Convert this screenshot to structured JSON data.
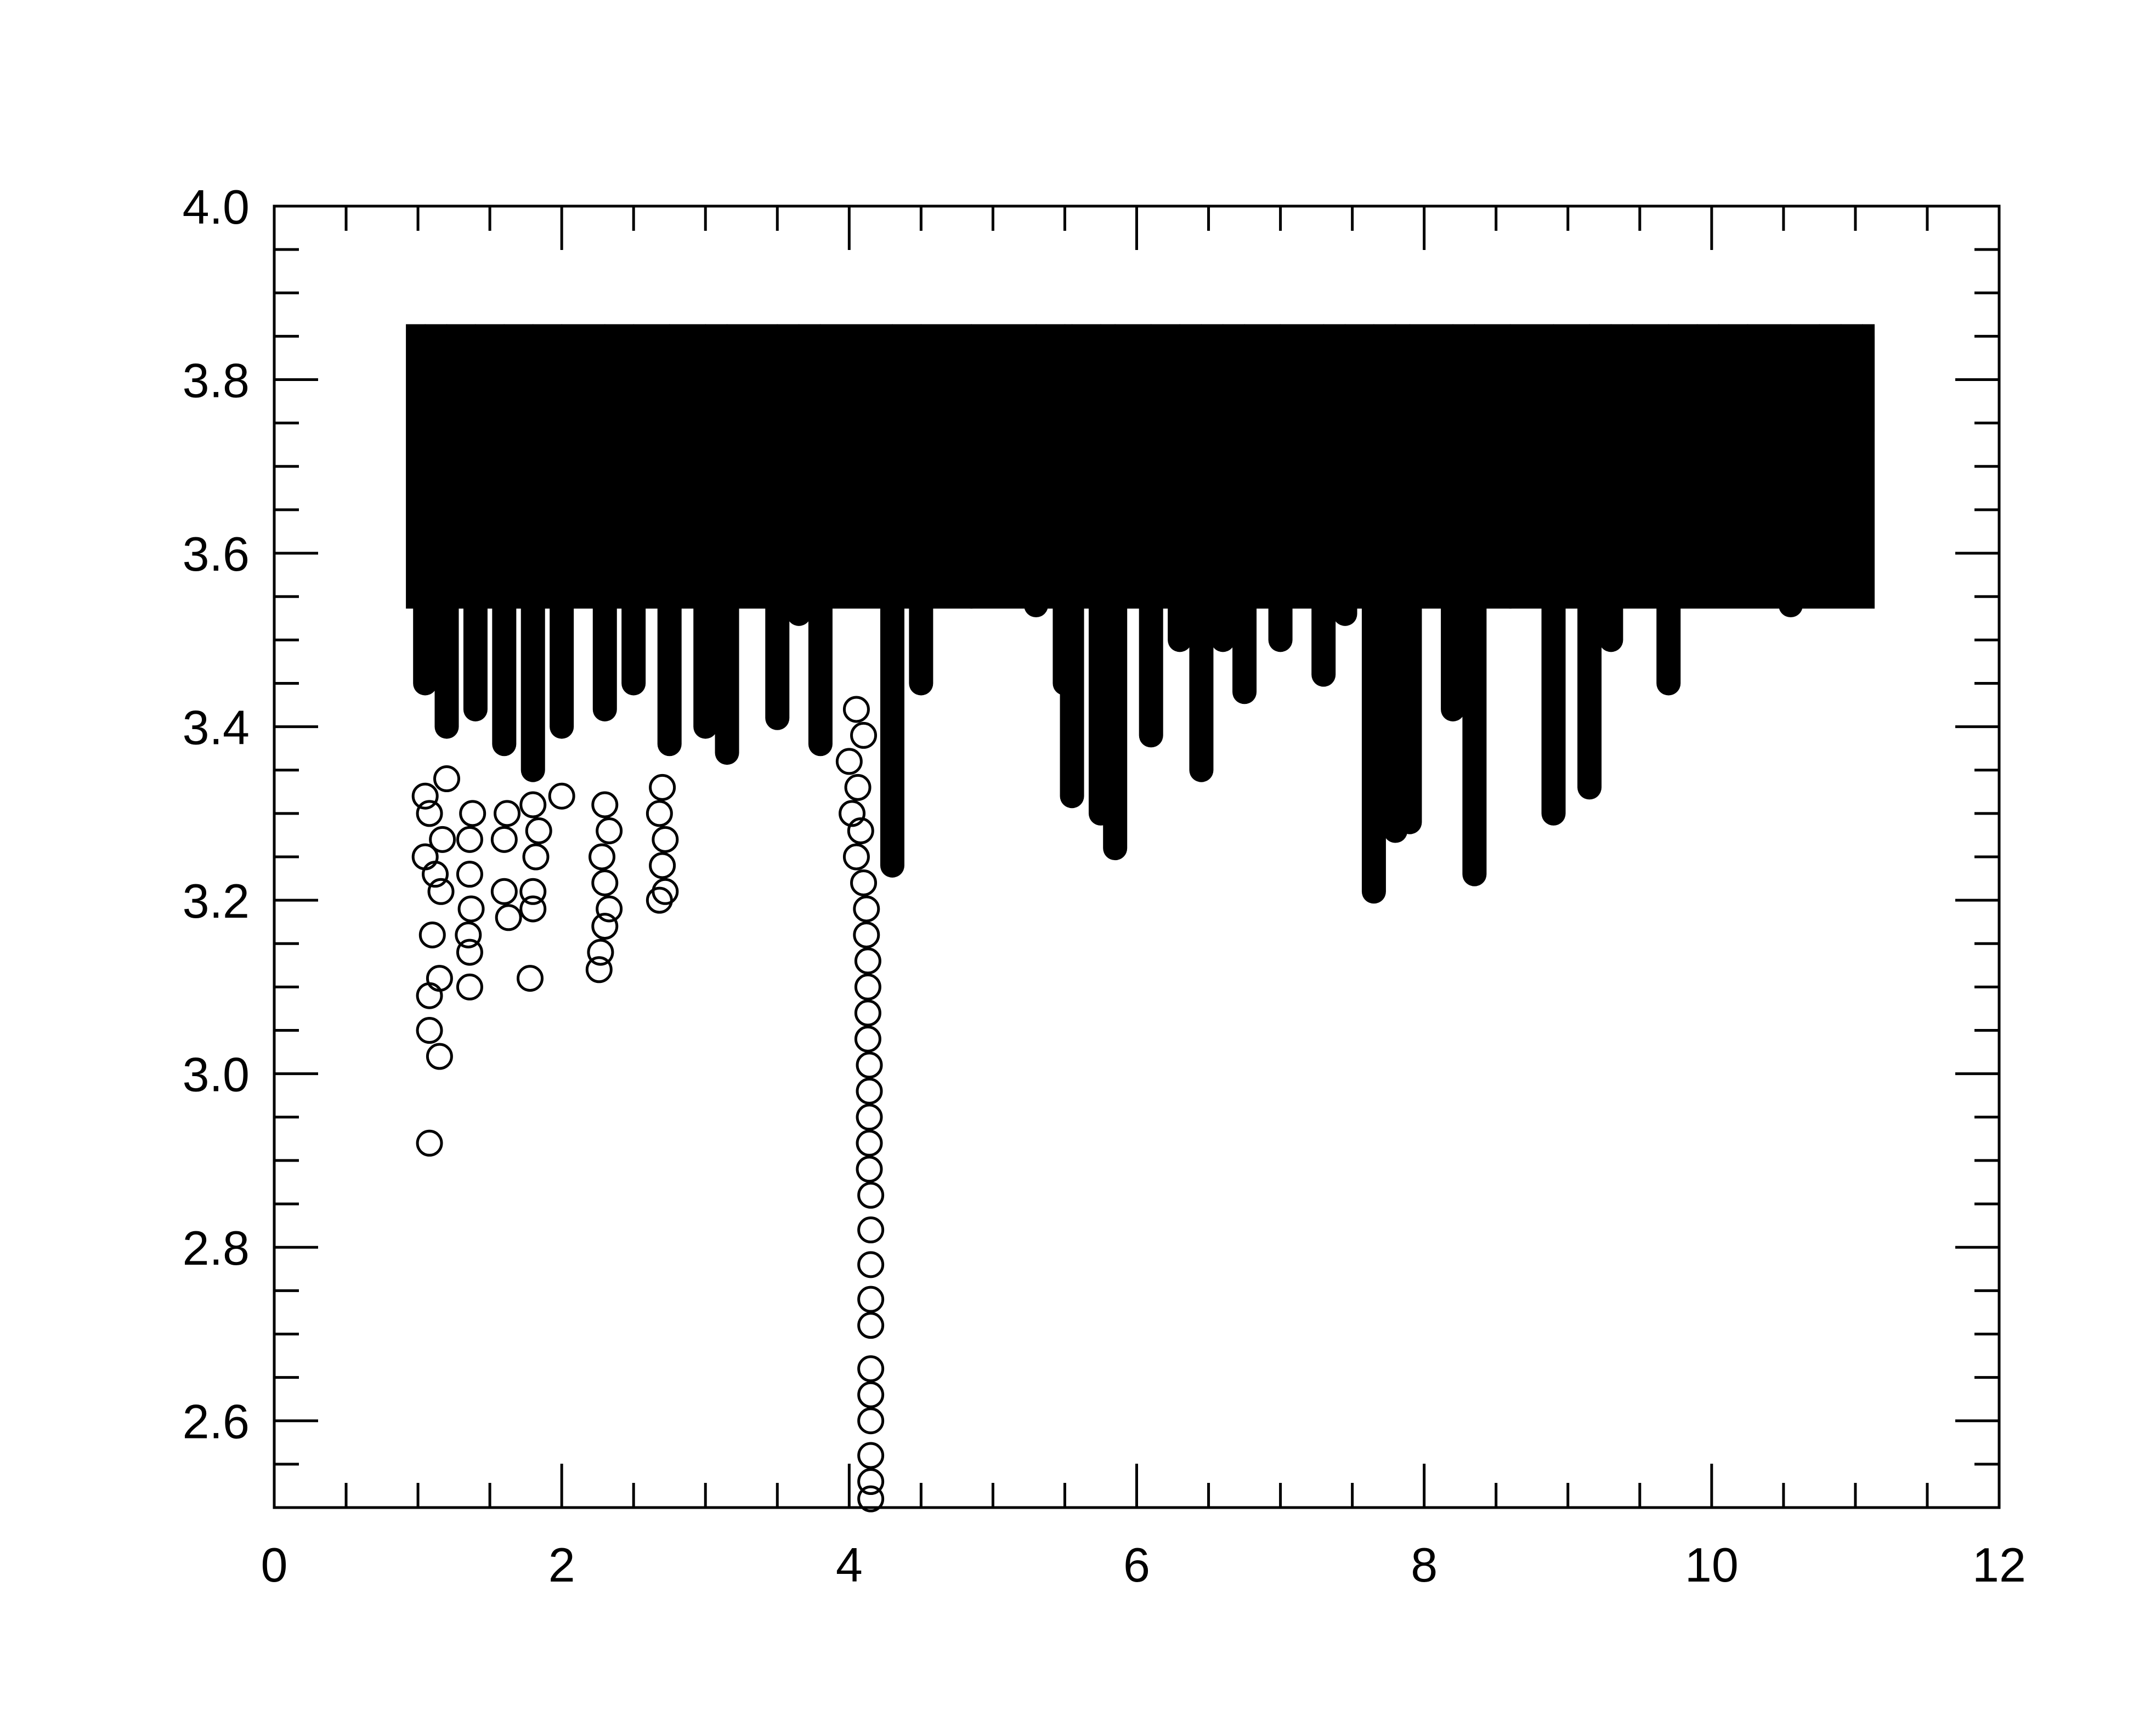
{
  "chart_data": {
    "type": "scatter",
    "title": "",
    "xlabel": "",
    "ylabel": "",
    "xlim": [
      0,
      12
    ],
    "ylim": [
      2.5,
      4.0
    ],
    "x_ticks": [
      0,
      2,
      4,
      6,
      8,
      10,
      12
    ],
    "x_tick_labels": [
      "0",
      "2",
      "4",
      "6",
      "8",
      "10",
      "12"
    ],
    "y_ticks": [
      2.6,
      2.8,
      3.0,
      3.2,
      3.4,
      3.6,
      3.8,
      4.0
    ],
    "y_tick_labels": [
      "2.6",
      "2.8",
      "3.0",
      "3.2",
      "3.4",
      "3.6",
      "3.8",
      "4.0"
    ],
    "x_minor_step": 0.5,
    "y_minor_step": 0.05,
    "grid": false,
    "legend": "none",
    "marker": "open-circle",
    "marker_color": "#000000",
    "series": [
      {
        "description_values_only": true,
        "envelope_top": 3.85,
        "dense_band": {
          "x_start": 1.0,
          "x_end": 11.05,
          "y_floor": 3.55,
          "y_top": 3.85
        },
        "columns": [
          {
            "x": 1.05,
            "y_min": 3.45
          },
          {
            "x": 1.2,
            "y_min": 3.4
          },
          {
            "x": 1.4,
            "y_min": 3.42
          },
          {
            "x": 1.6,
            "y_min": 3.38
          },
          {
            "x": 1.8,
            "y_min": 3.35
          },
          {
            "x": 2.0,
            "y_min": 3.4
          },
          {
            "x": 2.3,
            "y_min": 3.42
          },
          {
            "x": 2.5,
            "y_min": 3.45
          },
          {
            "x": 2.75,
            "y_min": 3.38
          },
          {
            "x": 3.0,
            "y_min": 3.4
          },
          {
            "x": 3.15,
            "y_min": 3.37
          },
          {
            "x": 3.5,
            "y_min": 3.41
          },
          {
            "x": 3.65,
            "y_min": 3.53
          },
          {
            "x": 3.8,
            "y_min": 3.38
          },
          {
            "x": 4.3,
            "y_min": 3.24
          },
          {
            "x": 4.5,
            "y_min": 3.45
          },
          {
            "x": 4.85,
            "y_min": 3.55
          },
          {
            "x": 5.3,
            "y_min": 3.54
          },
          {
            "x": 5.5,
            "y_min": 3.45
          },
          {
            "x": 5.55,
            "y_min": 3.32
          },
          {
            "x": 5.75,
            "y_min": 3.3
          },
          {
            "x": 5.85,
            "y_min": 3.26
          },
          {
            "x": 6.1,
            "y_min": 3.39
          },
          {
            "x": 6.3,
            "y_min": 3.5
          },
          {
            "x": 6.45,
            "y_min": 3.35
          },
          {
            "x": 6.6,
            "y_min": 3.5
          },
          {
            "x": 6.75,
            "y_min": 3.44
          },
          {
            "x": 7.0,
            "y_min": 3.5
          },
          {
            "x": 7.3,
            "y_min": 3.46
          },
          {
            "x": 7.45,
            "y_min": 3.53
          },
          {
            "x": 7.65,
            "y_min": 3.21
          },
          {
            "x": 7.8,
            "y_min": 3.28
          },
          {
            "x": 7.9,
            "y_min": 3.29
          },
          {
            "x": 8.2,
            "y_min": 3.42
          },
          {
            "x": 8.35,
            "y_min": 3.23
          },
          {
            "x": 8.6,
            "y_min": 3.55
          },
          {
            "x": 8.9,
            "y_min": 3.3
          },
          {
            "x": 9.15,
            "y_min": 3.33
          },
          {
            "x": 9.3,
            "y_min": 3.5
          },
          {
            "x": 9.45,
            "y_min": 3.63
          },
          {
            "x": 9.7,
            "y_min": 3.45
          },
          {
            "x": 9.9,
            "y_min": 3.6
          },
          {
            "x": 10.05,
            "y_min": 3.62
          },
          {
            "x": 10.25,
            "y_min": 3.58
          },
          {
            "x": 10.55,
            "y_min": 3.54
          },
          {
            "x": 10.75,
            "y_min": 3.66
          },
          {
            "x": 10.9,
            "y_min": 3.57
          },
          {
            "x": 11.05,
            "y_min": 3.74
          }
        ],
        "outliers": [
          {
            "x": 1.08,
            "y": 2.92
          },
          {
            "x": 1.15,
            "y": 3.02
          },
          {
            "x": 1.08,
            "y": 3.05
          },
          {
            "x": 1.08,
            "y": 3.09
          },
          {
            "x": 1.15,
            "y": 3.11
          },
          {
            "x": 1.1,
            "y": 3.16
          },
          {
            "x": 1.16,
            "y": 3.21
          },
          {
            "x": 1.12,
            "y": 3.23
          },
          {
            "x": 1.05,
            "y": 3.25
          },
          {
            "x": 1.17,
            "y": 3.27
          },
          {
            "x": 1.08,
            "y": 3.3
          },
          {
            "x": 1.05,
            "y": 3.32
          },
          {
            "x": 1.2,
            "y": 3.34
          },
          {
            "x": 1.36,
            "y": 3.1
          },
          {
            "x": 1.36,
            "y": 3.14
          },
          {
            "x": 1.35,
            "y": 3.16
          },
          {
            "x": 1.37,
            "y": 3.19
          },
          {
            "x": 1.36,
            "y": 3.23
          },
          {
            "x": 1.36,
            "y": 3.27
          },
          {
            "x": 1.38,
            "y": 3.3
          },
          {
            "x": 1.63,
            "y": 3.18
          },
          {
            "x": 1.6,
            "y": 3.21
          },
          {
            "x": 1.6,
            "y": 3.27
          },
          {
            "x": 1.62,
            "y": 3.3
          },
          {
            "x": 1.78,
            "y": 3.11
          },
          {
            "x": 1.8,
            "y": 3.19
          },
          {
            "x": 1.8,
            "y": 3.21
          },
          {
            "x": 1.82,
            "y": 3.25
          },
          {
            "x": 1.84,
            "y": 3.28
          },
          {
            "x": 1.8,
            "y": 3.31
          },
          {
            "x": 2.0,
            "y": 3.32
          },
          {
            "x": 2.26,
            "y": 3.12
          },
          {
            "x": 2.27,
            "y": 3.14
          },
          {
            "x": 2.3,
            "y": 3.17
          },
          {
            "x": 2.33,
            "y": 3.19
          },
          {
            "x": 2.3,
            "y": 3.22
          },
          {
            "x": 2.28,
            "y": 3.25
          },
          {
            "x": 2.33,
            "y": 3.28
          },
          {
            "x": 2.3,
            "y": 3.31
          },
          {
            "x": 2.68,
            "y": 3.2
          },
          {
            "x": 2.72,
            "y": 3.21
          },
          {
            "x": 2.7,
            "y": 3.24
          },
          {
            "x": 2.72,
            "y": 3.27
          },
          {
            "x": 2.68,
            "y": 3.3
          },
          {
            "x": 2.7,
            "y": 3.33
          },
          {
            "x": 4.15,
            "y": 2.51
          },
          {
            "x": 4.15,
            "y": 2.53
          },
          {
            "x": 4.15,
            "y": 2.56
          },
          {
            "x": 4.15,
            "y": 2.6
          },
          {
            "x": 4.15,
            "y": 2.63
          },
          {
            "x": 4.15,
            "y": 2.66
          },
          {
            "x": 4.15,
            "y": 2.71
          },
          {
            "x": 4.15,
            "y": 2.74
          },
          {
            "x": 4.15,
            "y": 2.78
          },
          {
            "x": 4.15,
            "y": 2.82
          },
          {
            "x": 4.15,
            "y": 2.86
          },
          {
            "x": 4.14,
            "y": 2.89
          },
          {
            "x": 4.14,
            "y": 2.92
          },
          {
            "x": 4.14,
            "y": 2.95
          },
          {
            "x": 4.14,
            "y": 2.98
          },
          {
            "x": 4.14,
            "y": 3.01
          },
          {
            "x": 4.13,
            "y": 3.04
          },
          {
            "x": 4.13,
            "y": 3.07
          },
          {
            "x": 4.13,
            "y": 3.1
          },
          {
            "x": 4.13,
            "y": 3.13
          },
          {
            "x": 4.12,
            "y": 3.16
          },
          {
            "x": 4.12,
            "y": 3.19
          },
          {
            "x": 4.1,
            "y": 3.22
          },
          {
            "x": 4.05,
            "y": 3.25
          },
          {
            "x": 4.08,
            "y": 3.28
          },
          {
            "x": 4.02,
            "y": 3.3
          },
          {
            "x": 4.06,
            "y": 3.33
          },
          {
            "x": 4.0,
            "y": 3.36
          },
          {
            "x": 4.1,
            "y": 3.39
          },
          {
            "x": 4.05,
            "y": 3.42
          }
        ]
      }
    ]
  }
}
